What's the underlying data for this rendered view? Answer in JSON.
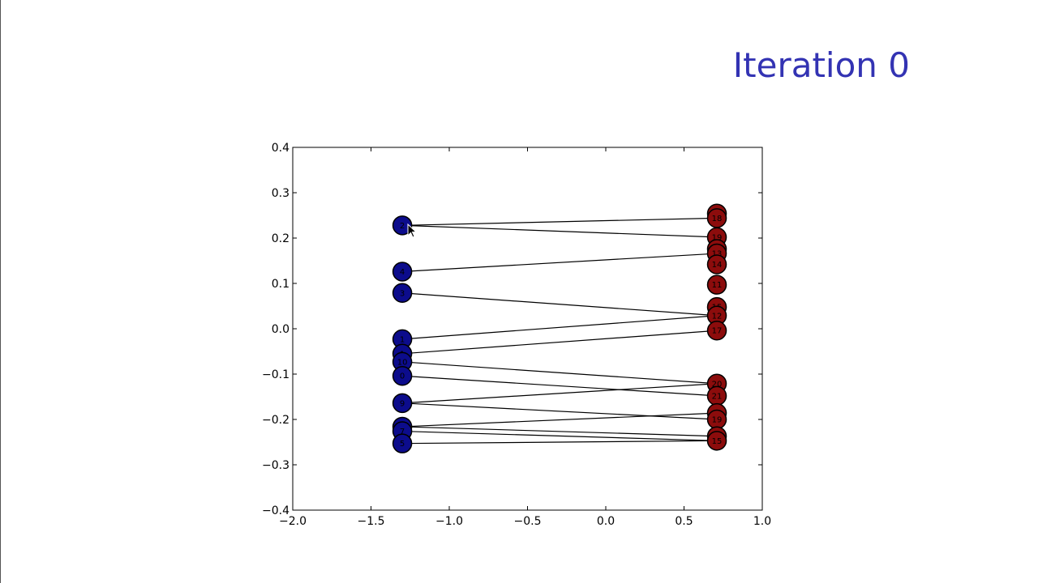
{
  "slide": {
    "title": "Iteration 0"
  },
  "chart_data": {
    "type": "scatter",
    "title": "",
    "xlabel": "",
    "ylabel": "",
    "xlim": [
      -2.0,
      1.0
    ],
    "ylim": [
      -0.4,
      0.4
    ],
    "grid": false,
    "x_ticks": [
      -2.0,
      -1.5,
      -1.0,
      -0.5,
      0.0,
      0.5,
      1.0
    ],
    "y_ticks": [
      -0.4,
      -0.3,
      -0.2,
      -0.1,
      0.0,
      0.1,
      0.2,
      0.3,
      0.4
    ],
    "x_tick_labels": [
      "−2.0",
      "−1.5",
      "−1.0",
      "−0.5",
      "0.0",
      "0.5",
      "1.0"
    ],
    "y_tick_labels": [
      "−0.4",
      "−0.3",
      "−0.2",
      "−0.1",
      "0.0",
      "0.1",
      "0.2",
      "0.3",
      "0.4"
    ],
    "colors": {
      "left_group": "#0c0c8c",
      "right_group": "#8c0c0c",
      "edge": "#000000",
      "title": "#3333b3"
    },
    "left_nodes": [
      {
        "id": "L1",
        "label": "2",
        "x": -1.3,
        "y": 0.228
      },
      {
        "id": "L2",
        "label": "4",
        "x": -1.3,
        "y": 0.126
      },
      {
        "id": "L3",
        "label": "3",
        "x": -1.3,
        "y": 0.079
      },
      {
        "id": "L4",
        "label": "1",
        "x": -1.3,
        "y": -0.023
      },
      {
        "id": "L5",
        "label": "1",
        "x": -1.3,
        "y": -0.055
      },
      {
        "id": "L6",
        "label": "10",
        "x": -1.3,
        "y": -0.073
      },
      {
        "id": "L7",
        "label": "0",
        "x": -1.3,
        "y": -0.104
      },
      {
        "id": "L8",
        "label": "9",
        "x": -1.3,
        "y": -0.164
      },
      {
        "id": "L9",
        "label": "6",
        "x": -1.3,
        "y": -0.216
      },
      {
        "id": "L10",
        "label": "7",
        "x": -1.3,
        "y": -0.226
      },
      {
        "id": "L11",
        "label": "5",
        "x": -1.3,
        "y": -0.253
      }
    ],
    "right_nodes": [
      {
        "id": "R1",
        "label": "20",
        "x": 0.71,
        "y": 0.254
      },
      {
        "id": "R2",
        "label": "18",
        "x": 0.71,
        "y": 0.244
      },
      {
        "id": "R3",
        "label": "19",
        "x": 0.71,
        "y": 0.202
      },
      {
        "id": "R4",
        "label": "16",
        "x": 0.71,
        "y": 0.176
      },
      {
        "id": "R5",
        "label": "13",
        "x": 0.71,
        "y": 0.166
      },
      {
        "id": "R6",
        "label": "14",
        "x": 0.71,
        "y": 0.142
      },
      {
        "id": "R7",
        "label": "11",
        "x": 0.71,
        "y": 0.097
      },
      {
        "id": "R8",
        "label": "15",
        "x": 0.71,
        "y": 0.048
      },
      {
        "id": "R9",
        "label": "12",
        "x": 0.71,
        "y": 0.029
      },
      {
        "id": "R10",
        "label": "17",
        "x": 0.71,
        "y": -0.004
      },
      {
        "id": "R11",
        "label": "20",
        "x": 0.71,
        "y": -0.121
      },
      {
        "id": "R12",
        "label": "21",
        "x": 0.71,
        "y": -0.148
      },
      {
        "id": "R13",
        "label": "18",
        "x": 0.71,
        "y": -0.186
      },
      {
        "id": "R14",
        "label": "19",
        "x": 0.71,
        "y": -0.2
      },
      {
        "id": "R15",
        "label": "16",
        "x": 0.71,
        "y": -0.237
      },
      {
        "id": "R16",
        "label": "15",
        "x": 0.71,
        "y": -0.247
      }
    ],
    "edges": [
      {
        "from": "L1",
        "to": "R2"
      },
      {
        "from": "L1",
        "to": "R3"
      },
      {
        "from": "L2",
        "to": "R5"
      },
      {
        "from": "L3",
        "to": "R9"
      },
      {
        "from": "L4",
        "to": "R9"
      },
      {
        "from": "L5",
        "to": "R10"
      },
      {
        "from": "L6",
        "to": "R11"
      },
      {
        "from": "L7",
        "to": "R12"
      },
      {
        "from": "L8",
        "to": "R11"
      },
      {
        "from": "L8",
        "to": "R14"
      },
      {
        "from": "L9",
        "to": "R13"
      },
      {
        "from": "L9",
        "to": "R15"
      },
      {
        "from": "L10",
        "to": "R16"
      },
      {
        "from": "L11",
        "to": "R16"
      }
    ]
  }
}
